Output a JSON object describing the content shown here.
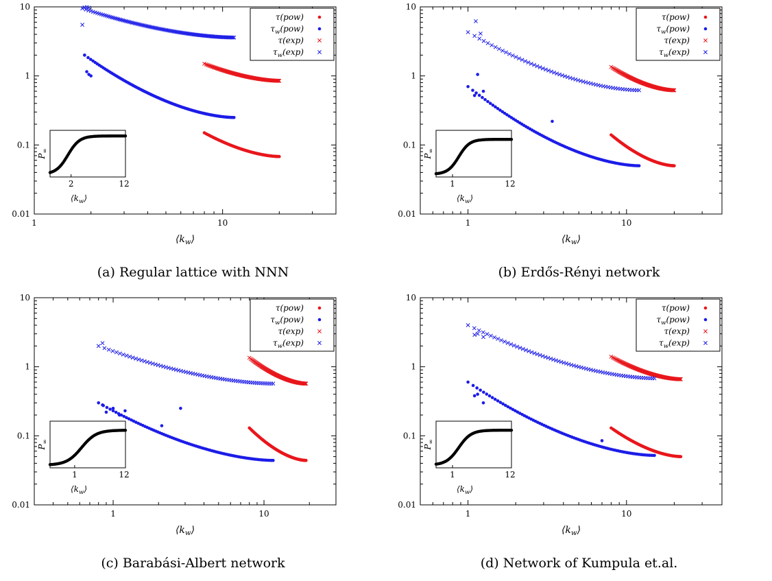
{
  "figures": [
    {
      "caption": "(a) Regular lattice with NNN",
      "inset_ticks": [
        "2",
        "12"
      ],
      "chart_data": {
        "type": "scatter",
        "xlabel": "⟨k_w⟩",
        "ylabel": "",
        "xscale": "log",
        "yscale": "log",
        "xlim": [
          1,
          40
        ],
        "ylim": [
          0.01,
          10
        ],
        "xticks": [
          1,
          10
        ],
        "yticks": [
          0.01,
          0.1,
          1,
          10
        ],
        "legend_position": "top-right",
        "series": [
          {
            "name": "τ(pow)",
            "color": "#e8171c",
            "marker": "dot",
            "x_range": [
              8,
              20
            ],
            "y_start": 0.15,
            "y_end": 0.068,
            "n": 110
          },
          {
            "name": "τ_w(pow)",
            "color": "#1c1ce8",
            "marker": "dot",
            "x_range": [
              1.85,
              11.5
            ],
            "y_start": 2.0,
            "y_end": 0.25,
            "n": 110,
            "head": [
              [
                1.85,
                2.0
              ],
              [
                1.9,
                1.15
              ],
              [
                1.95,
                1.05
              ],
              [
                2.0,
                1.0
              ]
            ]
          },
          {
            "name": "τ(exp)",
            "color": "#e8171c",
            "marker": "cross",
            "x_range": [
              8,
              20
            ],
            "y_start": 1.5,
            "y_end": 0.85,
            "n": 110
          },
          {
            "name": "τ_w(exp)",
            "color": "#1c1ce8",
            "marker": "cross",
            "x_range": [
              1.8,
              11.5
            ],
            "y_start": 9.5,
            "y_end": 3.6,
            "n": 110,
            "head": [
              [
                1.8,
                5.5
              ],
              [
                1.85,
                9.8
              ],
              [
                1.9,
                9.9
              ],
              [
                1.95,
                9.7
              ]
            ]
          }
        ],
        "inset": {
          "xlabel": "⟨k_w⟩",
          "ylabel": "P_∞",
          "xlim": [
            1,
            12
          ],
          "plateau": 0.9,
          "rise_x": 1.8,
          "sharpness": 3.0
        }
      }
    },
    {
      "caption": "(b) Erdős-Rényi network",
      "inset_ticks": [
        "1",
        "12"
      ],
      "chart_data": {
        "type": "scatter",
        "xlabel": "⟨k_w⟩",
        "ylabel": "",
        "xscale": "log",
        "yscale": "log",
        "xlim": [
          0.5,
          40
        ],
        "ylim": [
          0.01,
          10
        ],
        "xticks": [
          1,
          10
        ],
        "yticks": [
          0.01,
          0.1,
          1,
          10
        ],
        "legend_position": "top-right",
        "series": [
          {
            "name": "τ(pow)",
            "color": "#e8171c",
            "marker": "dot",
            "x_range": [
              8,
              20
            ],
            "y_start": 0.14,
            "y_end": 0.05,
            "n": 110
          },
          {
            "name": "τ_w(pow)",
            "color": "#1c1ce8",
            "marker": "dot",
            "x_range": [
              1.0,
              12
            ],
            "y_start": 0.7,
            "y_end": 0.05,
            "n": 90,
            "head": [
              [
                1.1,
                0.52
              ],
              [
                1.15,
                1.05
              ],
              [
                1.25,
                0.6
              ],
              [
                3.4,
                0.22
              ]
            ]
          },
          {
            "name": "τ(exp)",
            "color": "#e8171c",
            "marker": "cross",
            "x_range": [
              8,
              20
            ],
            "y_start": 1.35,
            "y_end": 0.62,
            "n": 110
          },
          {
            "name": "τ_w(exp)",
            "color": "#1c1ce8",
            "marker": "cross",
            "x_range": [
              1.0,
              12
            ],
            "y_start": 4.3,
            "y_end": 0.62,
            "n": 60,
            "head": [
              [
                1.12,
                6.2
              ],
              [
                1.2,
                4.1
              ]
            ]
          }
        ],
        "inset": {
          "xlabel": "⟨k_w⟩",
          "ylabel": "P_∞",
          "xlim": [
            0.5,
            12
          ],
          "plateau": 0.82,
          "rise_x": 1.3,
          "sharpness": 2.5
        }
      }
    },
    {
      "caption": "(c) Barabási-Albert network",
      "inset_ticks": [
        "1",
        "12"
      ],
      "chart_data": {
        "type": "scatter",
        "xlabel": "⟨k_w⟩",
        "ylabel": "",
        "xscale": "log",
        "yscale": "log",
        "xlim": [
          0.3,
          30
        ],
        "ylim": [
          0.01,
          10
        ],
        "xticks": [
          1,
          10
        ],
        "yticks": [
          0.01,
          0.1,
          1,
          10
        ],
        "legend_position": "top-right",
        "series": [
          {
            "name": "τ(pow)",
            "color": "#e8171c",
            "marker": "dot",
            "x_range": [
              8,
              19
            ],
            "y_start": 0.13,
            "y_end": 0.044,
            "n": 110
          },
          {
            "name": "τ_w(pow)",
            "color": "#1c1ce8",
            "marker": "dot",
            "x_range": [
              0.8,
              11.5
            ],
            "y_start": 0.3,
            "y_end": 0.044,
            "n": 90,
            "head": [
              [
                0.85,
                0.28
              ],
              [
                0.9,
                0.22
              ],
              [
                1.0,
                0.25
              ],
              [
                1.1,
                0.2
              ],
              [
                1.2,
                0.23
              ],
              [
                2.1,
                0.14
              ],
              [
                2.8,
                0.25
              ]
            ]
          },
          {
            "name": "τ(exp)",
            "color": "#e8171c",
            "marker": "cross",
            "x_range": [
              8,
              19
            ],
            "y_start": 1.35,
            "y_end": 0.57,
            "n": 110
          },
          {
            "name": "τ_w(exp)",
            "color": "#1c1ce8",
            "marker": "cross",
            "x_range": [
              0.8,
              11.5
            ],
            "y_start": 2.0,
            "y_end": 0.57,
            "n": 70,
            "head": [
              [
                0.85,
                2.2
              ]
            ]
          }
        ],
        "inset": {
          "xlabel": "⟨k_w⟩",
          "ylabel": "P_∞",
          "xlim": [
            0.3,
            12
          ],
          "plateau": 0.82,
          "rise_x": 1.4,
          "sharpness": 1.6
        }
      }
    },
    {
      "caption": "(d) Network of Kumpula et.al.",
      "inset_ticks": [
        "1",
        "12"
      ],
      "chart_data": {
        "type": "scatter",
        "xlabel": "⟨k_w⟩",
        "ylabel": "",
        "xscale": "log",
        "yscale": "log",
        "xlim": [
          0.5,
          40
        ],
        "ylim": [
          0.01,
          10
        ],
        "xticks": [
          1,
          10
        ],
        "yticks": [
          0.01,
          0.1,
          1,
          10
        ],
        "legend_position": "top-right",
        "series": [
          {
            "name": "τ(pow)",
            "color": "#e8171c",
            "marker": "dot",
            "x_range": [
              8,
              22
            ],
            "y_start": 0.13,
            "y_end": 0.05,
            "n": 110
          },
          {
            "name": "τ_w(pow)",
            "color": "#1c1ce8",
            "marker": "dot",
            "x_range": [
              1.0,
              15
            ],
            "y_start": 0.6,
            "y_end": 0.052,
            "n": 90,
            "head": [
              [
                1.1,
                0.38
              ],
              [
                1.15,
                0.4
              ],
              [
                1.25,
                0.3
              ],
              [
                7.0,
                0.085
              ]
            ]
          },
          {
            "name": "τ(exp)",
            "color": "#e8171c",
            "marker": "cross",
            "x_range": [
              8,
              22
            ],
            "y_start": 1.4,
            "y_end": 0.66,
            "n": 110
          },
          {
            "name": "τ_w(exp)",
            "color": "#1c1ce8",
            "marker": "cross",
            "x_range": [
              1.0,
              15
            ],
            "y_start": 4.0,
            "y_end": 0.68,
            "n": 70,
            "head": [
              [
                1.1,
                2.9
              ],
              [
                1.15,
                3.0
              ],
              [
                1.25,
                2.7
              ]
            ]
          }
        ],
        "inset": {
          "xlabel": "⟨k_w⟩",
          "ylabel": "P_∞",
          "xlim": [
            0.5,
            12
          ],
          "plateau": 0.82,
          "rise_x": 1.3,
          "sharpness": 2.2
        }
      }
    }
  ]
}
